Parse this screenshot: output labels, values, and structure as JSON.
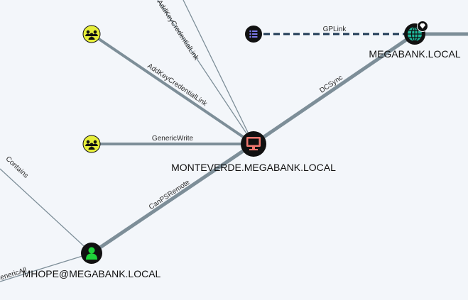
{
  "colors": {
    "background": "#f3f6fa",
    "edge": "#7d8e98",
    "group_node": "#e6ee3a",
    "computer_icon": "#f0776e",
    "user_icon": "#1fd33a",
    "domain_icon": "#1fb89a",
    "gpo_icon": "#7b78e8"
  },
  "nodes": {
    "monteverde": {
      "label": "MONTEVERDE.MEGABANK.LOCAL",
      "icon": "computer-icon"
    },
    "megabank": {
      "label": "MEGABANK.LOCAL",
      "icon": "globe-icon",
      "badge": "diamond-icon"
    },
    "mhope": {
      "label": "MHOPE@MEGABANK.LOCAL",
      "icon": "user-icon"
    },
    "group1": {
      "icon": "group-icon"
    },
    "group2": {
      "icon": "group-icon"
    },
    "gpo": {
      "icon": "list-icon"
    }
  },
  "edges": {
    "addkey_top": "AddKeyCredentialLink",
    "addkey_mid": "AddKeyCredentialLink",
    "generic_write": "GenericWrite",
    "dcsync": "DCSync",
    "gplink": "GPLink",
    "canpsremote": "CanPSRemote",
    "contains": "Contains",
    "generic_all": "GenericAll"
  }
}
